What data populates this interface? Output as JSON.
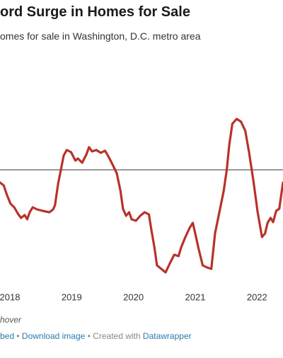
{
  "chart_data": {
    "type": "line",
    "title": "ord Surge in Homes for Sale",
    "subtitle": "omes for sale in Washington, D.C. metro area",
    "note": "hover",
    "footer": [
      "bed",
      "Download image",
      "Created with",
      "Datawrapper"
    ],
    "xlim": [
      2017.84,
      2022.42
    ],
    "ylim": [
      -150,
      100
    ],
    "xticks": [
      2018,
      2019,
      2020,
      2021,
      2022
    ],
    "reference_line": 0,
    "series": [
      {
        "name": null,
        "color": "#b8322a",
        "x": [
          2017.84,
          2017.9,
          2017.95,
          2018.01,
          2018.07,
          2018.13,
          2018.18,
          2018.24,
          2018.28,
          2018.32,
          2018.37,
          2018.44,
          2018.53,
          2018.64,
          2018.7,
          2018.73,
          2018.78,
          2018.83,
          2018.87,
          2018.92,
          2018.99,
          2019.06,
          2019.1,
          2019.17,
          2019.24,
          2019.28,
          2019.33,
          2019.4,
          2019.47,
          2019.54,
          2019.6,
          2019.67,
          2019.73,
          2019.79,
          2019.83,
          2019.88,
          2019.93,
          2019.97,
          2020.04,
          2020.11,
          2020.18,
          2020.25,
          2020.29,
          2020.34,
          2020.38,
          2020.45,
          2020.52,
          2020.59,
          2020.66,
          2020.73,
          2020.77,
          2020.84,
          2020.91,
          2020.96,
          2021.0,
          2021.05,
          2021.12,
          2021.19,
          2021.26,
          2021.32,
          2021.39,
          2021.46,
          2021.51,
          2021.55,
          2021.6,
          2021.67,
          2021.74,
          2021.81,
          2021.87,
          2021.94,
          2022.01,
          2022.08,
          2022.13,
          2022.17,
          2022.22,
          2022.26,
          2022.31,
          2022.36,
          2022.4,
          2022.42
        ],
        "values": [
          -18,
          -22,
          -35,
          -48,
          -53,
          -62,
          -68,
          -64,
          -70,
          -60,
          -53,
          -56,
          -58,
          -60,
          -56,
          -50,
          -20,
          2,
          20,
          28,
          25,
          13,
          16,
          10,
          22,
          32,
          26,
          28,
          24,
          27,
          18,
          6,
          -5,
          -30,
          -55,
          -65,
          -60,
          -70,
          -72,
          -65,
          -60,
          -63,
          -85,
          -110,
          -135,
          -140,
          -145,
          -132,
          -120,
          -122,
          -110,
          -95,
          -82,
          -75,
          -90,
          -110,
          -135,
          -138,
          -140,
          -90,
          -60,
          -30,
          0,
          35,
          65,
          72,
          68,
          55,
          25,
          -15,
          -60,
          -95,
          -90,
          -75,
          -68,
          -74,
          -58,
          -55,
          -30,
          -18
        ]
      }
    ]
  }
}
